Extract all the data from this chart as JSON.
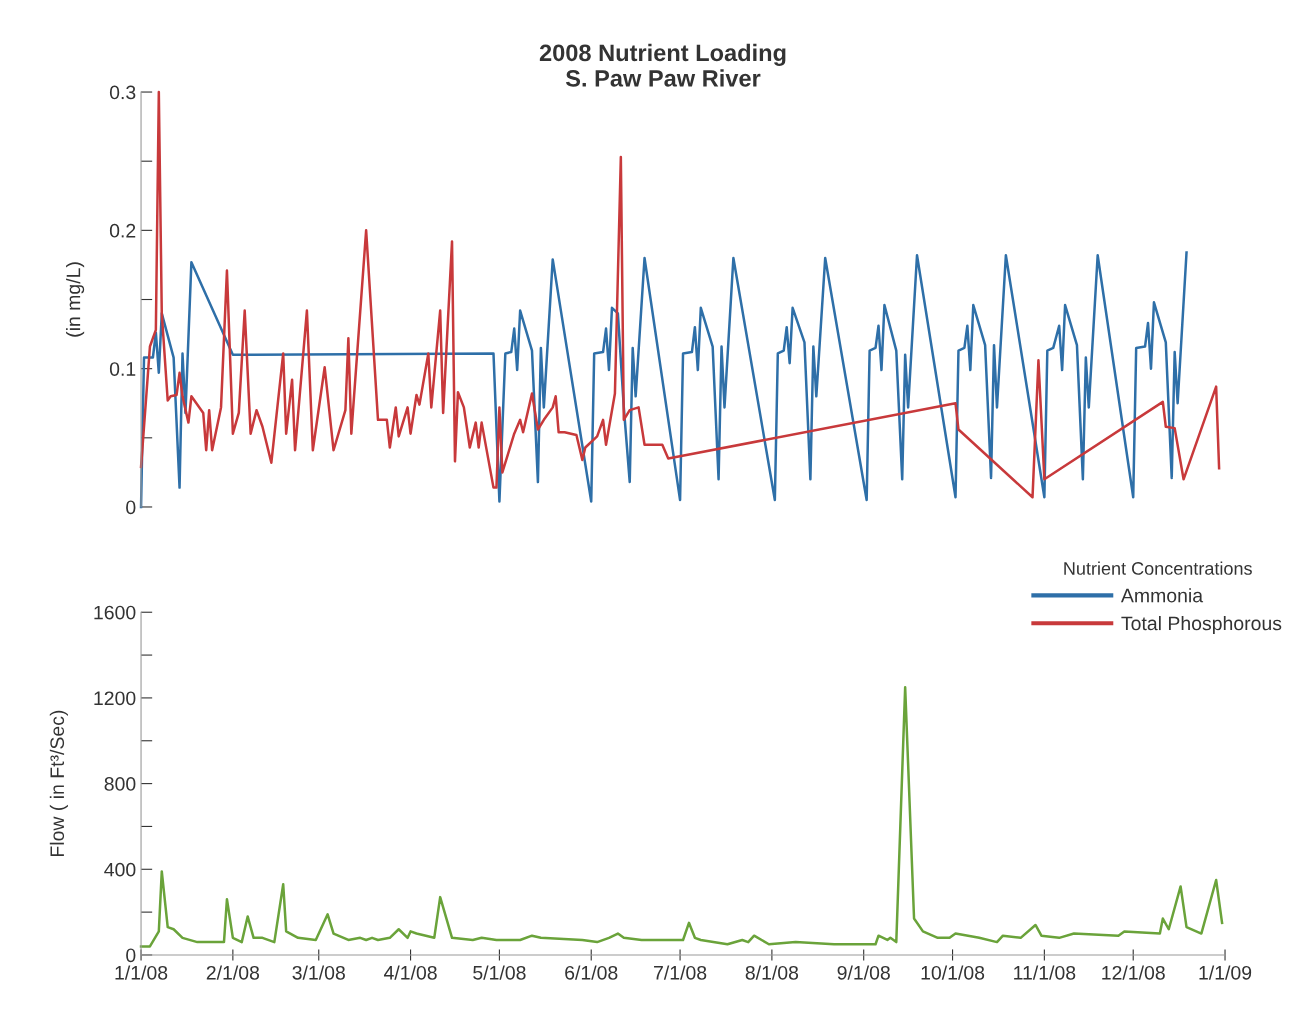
{
  "chart_data": [
    {
      "type": "line",
      "title": "2008 Nutrient Loading",
      "subtitle": "S. Paw Paw River",
      "ylabel": "(in mg/L)",
      "legend_title": "Nutrient Concentrations",
      "legend": "bottom right",
      "grid": false,
      "tick_labels": "y",
      "marker": "none",
      "line_style": "solid",
      "xlim": [
        "2008-01-01",
        "2009-01-01"
      ],
      "ylim": [
        0,
        0.3
      ],
      "yticks": [
        0,
        {
          "value": 0.05,
          "label": null
        },
        0.1,
        {
          "value": 0.15,
          "label": null
        },
        0.2,
        {
          "value": 0.25,
          "label": null
        },
        0.3
      ],
      "series": [
        {
          "name": "Ammonia",
          "color": "#2e6fa8",
          "x": [
            "2008-01-01",
            "2008-01-02",
            "2008-01-05",
            "2008-01-06",
            "2008-01-07",
            "2008-01-08",
            "2008-01-12",
            "2008-01-14",
            "2008-01-15",
            "2008-01-16",
            "2008-01-18",
            "2008-02-01",
            "2008-04-29",
            "2008-05-01",
            "2008-05-03",
            "2008-05-05",
            "2008-05-06",
            "2008-05-07",
            "2008-05-08",
            "2008-05-12",
            "2008-05-14",
            "2008-05-15",
            "2008-05-16",
            "2008-05-19",
            "2008-06-01",
            "2008-06-02",
            "2008-06-05",
            "2008-06-06",
            "2008-06-07",
            "2008-06-08",
            "2008-06-10",
            "2008-06-12",
            "2008-06-14",
            "2008-06-15",
            "2008-06-16",
            "2008-06-19",
            "2008-07-01",
            "2008-07-02",
            "2008-07-05",
            "2008-07-06",
            "2008-07-07",
            "2008-07-08",
            "2008-07-12",
            "2008-07-14",
            "2008-07-15",
            "2008-07-16",
            "2008-07-19",
            "2008-08-02",
            "2008-08-03",
            "2008-08-05",
            "2008-08-06",
            "2008-08-07",
            "2008-08-08",
            "2008-08-12",
            "2008-08-14",
            "2008-08-15",
            "2008-08-16",
            "2008-08-19",
            "2008-09-02",
            "2008-09-03",
            "2008-09-05",
            "2008-09-06",
            "2008-09-07",
            "2008-09-08",
            "2008-09-12",
            "2008-09-14",
            "2008-09-15",
            "2008-09-16",
            "2008-09-19",
            "2008-10-02",
            "2008-10-03",
            "2008-10-05",
            "2008-10-06",
            "2008-10-07",
            "2008-10-08",
            "2008-10-12",
            "2008-10-14",
            "2008-10-15",
            "2008-10-16",
            "2008-10-19",
            "2008-11-01",
            "2008-11-02",
            "2008-11-04",
            "2008-11-06",
            "2008-11-07",
            "2008-11-08",
            "2008-11-12",
            "2008-11-14",
            "2008-11-15",
            "2008-11-16",
            "2008-11-19",
            "2008-12-01",
            "2008-12-02",
            "2008-12-05",
            "2008-12-06",
            "2008-12-07",
            "2008-12-08",
            "2008-12-12",
            "2008-12-14",
            "2008-12-15",
            "2008-12-16",
            "2008-12-19"
          ],
          "values": [
            0.0,
            0.108,
            0.108,
            0.126,
            0.097,
            0.14,
            0.108,
            0.014,
            0.111,
            0.068,
            0.177,
            0.11,
            0.111,
            0.004,
            0.111,
            0.112,
            0.129,
            0.099,
            0.142,
            0.113,
            0.018,
            0.115,
            0.072,
            0.179,
            0.004,
            0.111,
            0.112,
            0.129,
            0.099,
            0.144,
            0.14,
            0.072,
            0.018,
            0.115,
            0.08,
            0.18,
            0.005,
            0.111,
            0.112,
            0.13,
            0.099,
            0.144,
            0.116,
            0.02,
            0.116,
            0.072,
            0.18,
            0.005,
            0.111,
            0.113,
            0.13,
            0.104,
            0.144,
            0.119,
            0.02,
            0.116,
            0.08,
            0.18,
            0.005,
            0.113,
            0.115,
            0.131,
            0.099,
            0.146,
            0.113,
            0.02,
            0.11,
            0.072,
            0.182,
            0.007,
            0.113,
            0.115,
            0.131,
            0.099,
            0.146,
            0.117,
            0.021,
            0.117,
            0.072,
            0.182,
            0.007,
            0.113,
            0.115,
            0.131,
            0.099,
            0.146,
            0.117,
            0.02,
            0.108,
            0.072,
            0.182,
            0.007,
            0.115,
            0.116,
            0.133,
            0.1,
            0.148,
            0.119,
            0.021,
            0.112,
            0.075,
            0.184
          ]
        },
        {
          "name": "Total Phosphorous",
          "color": "#c8393b",
          "x": [
            "2008-01-01",
            "2008-01-04",
            "2008-01-06",
            "2008-01-07",
            "2008-01-08",
            "2008-01-10",
            "2008-01-11",
            "2008-01-13",
            "2008-01-14",
            "2008-01-15",
            "2008-01-17",
            "2008-01-18",
            "2008-01-22",
            "2008-01-23",
            "2008-01-24",
            "2008-01-25",
            "2008-01-28",
            "2008-01-30",
            "2008-02-01",
            "2008-02-03",
            "2008-02-05",
            "2008-02-07",
            "2008-02-09",
            "2008-02-11",
            "2008-02-14",
            "2008-02-18",
            "2008-02-19",
            "2008-02-21",
            "2008-02-22",
            "2008-02-26",
            "2008-02-28",
            "2008-03-03",
            "2008-03-06",
            "2008-03-10",
            "2008-03-11",
            "2008-03-12",
            "2008-03-17",
            "2008-03-21",
            "2008-03-24",
            "2008-03-25",
            "2008-03-27",
            "2008-03-28",
            "2008-03-31",
            "2008-04-01",
            "2008-04-03",
            "2008-04-04",
            "2008-04-07",
            "2008-04-08",
            "2008-04-11",
            "2008-04-12",
            "2008-04-15",
            "2008-04-16",
            "2008-04-17",
            "2008-04-19",
            "2008-04-21",
            "2008-04-23",
            "2008-04-24",
            "2008-04-25",
            "2008-04-29",
            "2008-04-30",
            "2008-05-01",
            "2008-05-02",
            "2008-05-06",
            "2008-05-08",
            "2008-05-09",
            "2008-05-12",
            "2008-05-14",
            "2008-05-16",
            "2008-05-19",
            "2008-05-20",
            "2008-05-21",
            "2008-05-23",
            "2008-05-27",
            "2008-05-29",
            "2008-05-30",
            "2008-06-03",
            "2008-06-05",
            "2008-06-06",
            "2008-06-09",
            "2008-06-11",
            "2008-06-12",
            "2008-06-14",
            "2008-06-17",
            "2008-06-19",
            "2008-06-25",
            "2008-06-27",
            "2008-10-02",
            "2008-10-03",
            "2008-10-28",
            "2008-10-30",
            "2008-11-01",
            "2008-12-11",
            "2008-12-12",
            "2008-12-15",
            "2008-12-18",
            "2008-12-29",
            "2008-12-30"
          ],
          "values": [
            0.029,
            0.116,
            0.128,
            0.3,
            0.14,
            0.077,
            0.08,
            0.081,
            0.097,
            0.08,
            0.061,
            0.08,
            0.068,
            0.041,
            0.07,
            0.041,
            0.072,
            0.171,
            0.053,
            0.068,
            0.142,
            0.053,
            0.07,
            0.058,
            0.032,
            0.111,
            0.053,
            0.092,
            0.041,
            0.142,
            0.041,
            0.101,
            0.041,
            0.07,
            0.122,
            0.053,
            0.2,
            0.063,
            0.063,
            0.043,
            0.072,
            0.051,
            0.072,
            0.053,
            0.081,
            0.074,
            0.111,
            0.072,
            0.142,
            0.068,
            0.192,
            0.033,
            0.083,
            0.072,
            0.043,
            0.061,
            0.043,
            0.061,
            0.014,
            0.014,
            0.072,
            0.025,
            0.053,
            0.063,
            0.054,
            0.082,
            0.056,
            0.063,
            0.072,
            0.08,
            0.054,
            0.054,
            0.052,
            0.034,
            0.043,
            0.051,
            0.063,
            0.045,
            0.082,
            0.253,
            0.063,
            0.07,
            0.072,
            0.045,
            0.045,
            0.035,
            0.075,
            0.056,
            0.007,
            0.106,
            0.02,
            0.076,
            0.058,
            0.057,
            0.02,
            0.087,
            0.028
          ]
        }
      ]
    },
    {
      "type": "line",
      "ylabel": "Flow ( in Ft³/Sec)",
      "grid": false,
      "marker": "none",
      "line_style": "solid",
      "xlim": [
        "2008-01-01",
        "2009-01-01"
      ],
      "ylim": [
        0,
        1600
      ],
      "xticks": [
        {
          "value": "2008-01-01",
          "label": "1/1/08"
        },
        {
          "value": "2008-02-01",
          "label": "2/1/08"
        },
        {
          "value": "2008-03-01",
          "label": "3/1/08"
        },
        {
          "value": "2008-04-01",
          "label": "4/1/08"
        },
        {
          "value": "2008-05-01",
          "label": "5/1/08"
        },
        {
          "value": "2008-06-01",
          "label": "6/1/08"
        },
        {
          "value": "2008-07-01",
          "label": "7/1/08"
        },
        {
          "value": "2008-08-01",
          "label": "8/1/08"
        },
        {
          "value": "2008-09-01",
          "label": "9/1/08"
        },
        {
          "value": "2008-10-01",
          "label": "10/1/08"
        },
        {
          "value": "2008-11-01",
          "label": "11/1/08"
        },
        {
          "value": "2008-12-01",
          "label": "12/1/08"
        },
        {
          "value": "2009-01-01",
          "label": "1/1/09"
        }
      ],
      "yticks": [
        0,
        {
          "value": 200,
          "label": null
        },
        400,
        {
          "value": 600,
          "label": null
        },
        800,
        {
          "value": 1000,
          "label": null
        },
        1200,
        {
          "value": 1400,
          "label": null
        },
        1600
      ],
      "series": [
        {
          "color": "#6aa33a",
          "x": [
            "2008-01-01",
            "2008-01-04",
            "2008-01-07",
            "2008-01-08",
            "2008-01-10",
            "2008-01-12",
            "2008-01-15",
            "2008-01-20",
            "2008-01-22",
            "2008-01-24",
            "2008-01-29",
            "2008-01-30",
            "2008-02-01",
            "2008-02-04",
            "2008-02-06",
            "2008-02-08",
            "2008-02-11",
            "2008-02-15",
            "2008-02-18",
            "2008-02-19",
            "2008-02-23",
            "2008-02-29",
            "2008-03-04",
            "2008-03-06",
            "2008-03-11",
            "2008-03-15",
            "2008-03-17",
            "2008-03-19",
            "2008-03-21",
            "2008-03-25",
            "2008-03-28",
            "2008-03-31",
            "2008-04-01",
            "2008-04-03",
            "2008-04-09",
            "2008-04-11",
            "2008-04-15",
            "2008-04-22",
            "2008-04-25",
            "2008-04-30",
            "2008-05-08",
            "2008-05-12",
            "2008-05-15",
            "2008-05-29",
            "2008-06-03",
            "2008-06-07",
            "2008-06-10",
            "2008-06-12",
            "2008-06-18",
            "2008-07-02",
            "2008-07-04",
            "2008-07-06",
            "2008-07-08",
            "2008-07-17",
            "2008-07-22",
            "2008-07-24",
            "2008-07-26",
            "2008-07-31",
            "2008-08-09",
            "2008-08-22",
            "2008-09-05",
            "2008-09-06",
            "2008-09-09",
            "2008-09-10",
            "2008-09-12",
            "2008-09-15",
            "2008-09-18",
            "2008-09-21",
            "2008-09-26",
            "2008-09-30",
            "2008-10-02",
            "2008-10-10",
            "2008-10-16",
            "2008-10-18",
            "2008-10-24",
            "2008-10-29",
            "2008-10-31",
            "2008-11-06",
            "2008-11-11",
            "2008-11-26",
            "2008-11-28",
            "2008-12-10",
            "2008-12-11",
            "2008-12-13",
            "2008-12-17",
            "2008-12-19",
            "2008-12-24",
            "2008-12-29",
            "2008-12-31"
          ],
          "values": [
            40,
            40,
            110,
            390,
            130,
            120,
            80,
            60,
            60,
            60,
            60,
            260,
            80,
            60,
            180,
            80,
            80,
            60,
            330,
            110,
            80,
            70,
            190,
            100,
            70,
            80,
            70,
            80,
            70,
            80,
            120,
            80,
            110,
            100,
            80,
            270,
            80,
            70,
            80,
            70,
            70,
            90,
            80,
            70,
            60,
            80,
            100,
            80,
            70,
            70,
            150,
            80,
            70,
            50,
            70,
            60,
            90,
            50,
            60,
            50,
            50,
            90,
            70,
            80,
            60,
            1250,
            170,
            110,
            80,
            80,
            100,
            80,
            60,
            90,
            80,
            140,
            90,
            80,
            100,
            90,
            110,
            100,
            170,
            120,
            320,
            130,
            100,
            350,
            150
          ]
        }
      ]
    }
  ]
}
